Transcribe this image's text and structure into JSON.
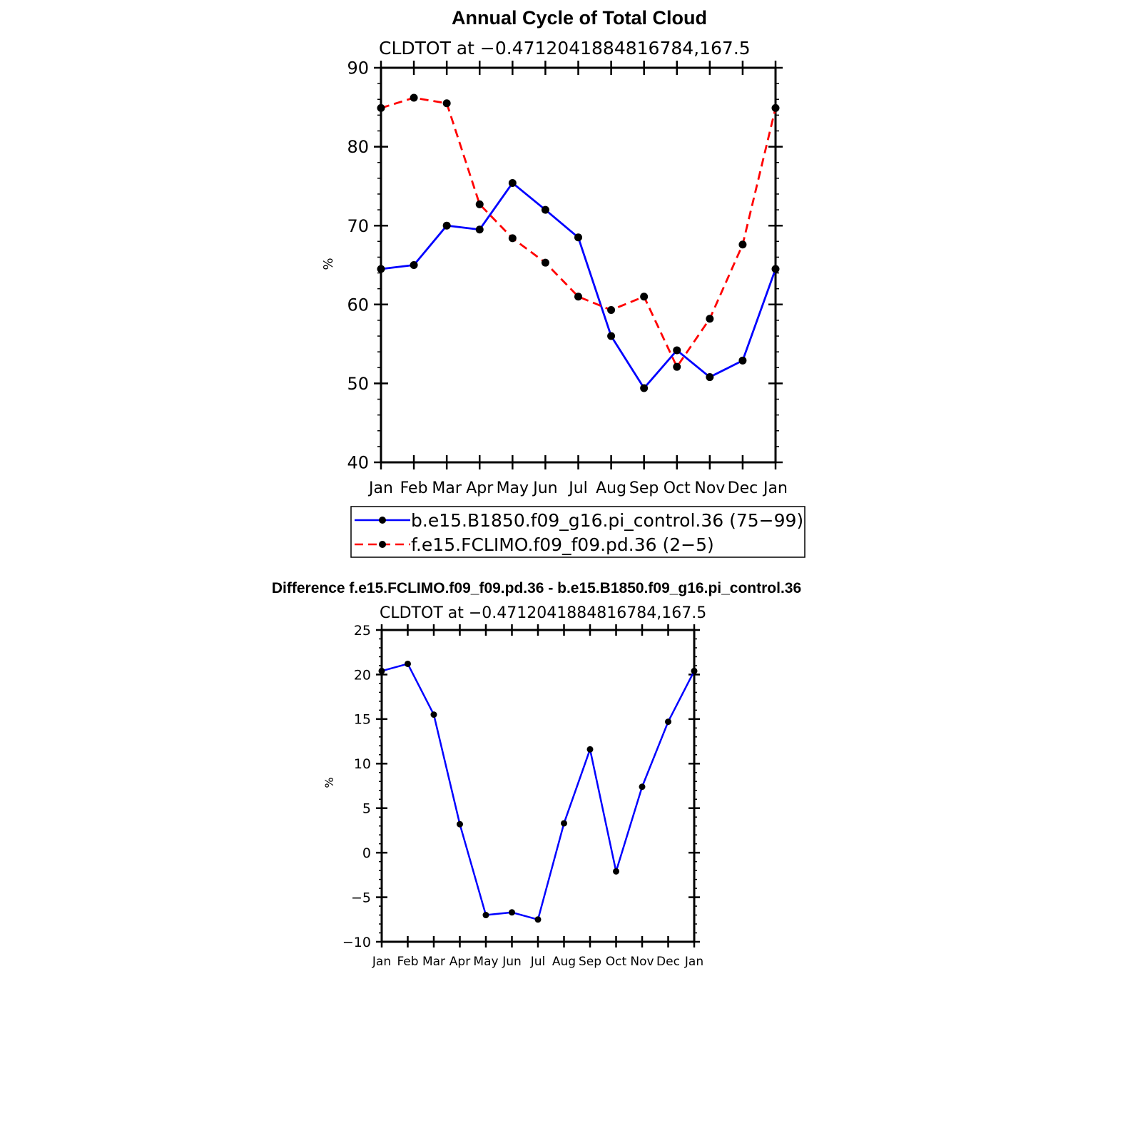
{
  "chart_data": [
    {
      "type": "line",
      "title": "Annual Cycle of Total Cloud",
      "subtitle": "CLDTOT at −0.4712041884816784,167.5",
      "ylabel": "%",
      "xlabel": "",
      "ylim": [
        40,
        90
      ],
      "yticks": [
        40,
        50,
        60,
        70,
        80,
        90
      ],
      "categories": [
        "Jan",
        "Feb",
        "Mar",
        "Apr",
        "May",
        "Jun",
        "Jul",
        "Aug",
        "Sep",
        "Oct",
        "Nov",
        "Dec",
        "Jan"
      ],
      "series": [
        {
          "name": "b.e15.B1850.f09_g16.pi_control.36 (75−99)",
          "color": "#0000ff",
          "dash": "solid",
          "values": [
            64.5,
            65.0,
            70.0,
            69.5,
            75.4,
            72.0,
            68.5,
            56.0,
            49.4,
            54.2,
            50.8,
            52.9,
            64.5
          ]
        },
        {
          "name": "f.e15.FCLIMO.f09_f09.pd.36 (2−5)",
          "color": "#ff0000",
          "dash": "dashed",
          "values": [
            84.9,
            86.2,
            85.5,
            72.7,
            68.4,
            65.3,
            61.0,
            59.3,
            61.0,
            52.1,
            58.2,
            67.6,
            84.9
          ]
        }
      ],
      "legend_position": "bottom"
    },
    {
      "type": "line",
      "title": "Difference f.e15.FCLIMO.f09_f09.pd.36 - b.e15.B1850.f09_g16.pi_control.36",
      "subtitle": "CLDTOT at −0.4712041884816784,167.5",
      "ylabel": "%",
      "xlabel": "",
      "ylim": [
        -10,
        25
      ],
      "yticks": [
        -10,
        -5,
        0,
        5,
        10,
        15,
        20,
        25
      ],
      "ytick_labels": [
        "−10",
        "−5",
        "0",
        "5",
        "10",
        "15",
        "20",
        "25"
      ],
      "categories": [
        "Jan",
        "Feb",
        "Mar",
        "Apr",
        "May",
        "Jun",
        "Jul",
        "Aug",
        "Sep",
        "Oct",
        "Nov",
        "Dec",
        "Jan"
      ],
      "series": [
        {
          "name": "Difference",
          "color": "#0000ff",
          "dash": "solid",
          "values": [
            20.4,
            21.2,
            15.5,
            3.2,
            -7.0,
            -6.7,
            -7.5,
            3.3,
            11.6,
            -2.1,
            7.4,
            14.7,
            20.4
          ]
        }
      ]
    }
  ]
}
